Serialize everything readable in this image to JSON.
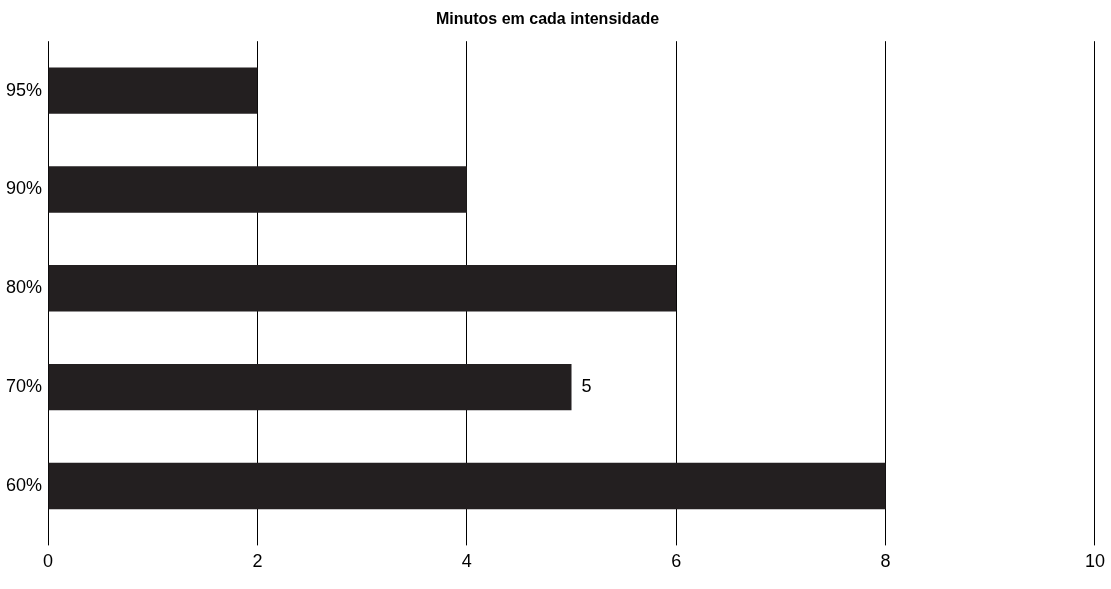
{
  "chart_data": {
    "type": "bar",
    "orientation": "horizontal",
    "title": "Minutos em cada intensidade",
    "categories": [
      "95%",
      "90%",
      "80%",
      "70%",
      "60%"
    ],
    "values": [
      2,
      4,
      6,
      5,
      8
    ],
    "color": "#231f20",
    "value_labels": [
      null,
      null,
      null,
      "5",
      null
    ],
    "xlim": [
      0,
      10
    ],
    "xticks": [
      0,
      2,
      4,
      6,
      8,
      10
    ],
    "grid": "x",
    "legend": false
  }
}
